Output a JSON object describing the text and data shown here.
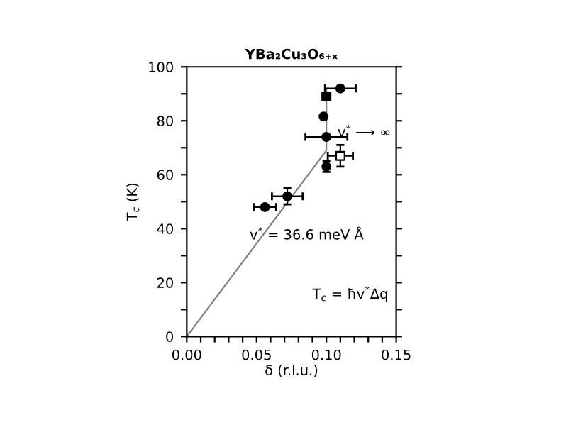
{
  "chart_data": {
    "type": "scatter",
    "title": "YBa₂Cu₃O₆₊ₓ",
    "xlabel": "δ (r.l.u.)",
    "ylabel": "T$_{c}$ (K)",
    "xlim": [
      0,
      0.15
    ],
    "ylim": [
      0,
      100
    ],
    "xticks": [
      {
        "value": 0,
        "label": "0.00"
      },
      {
        "value": 0.01,
        "label": null
      },
      {
        "value": 0.02,
        "label": null
      },
      {
        "value": 0.03,
        "label": null
      },
      {
        "value": 0.04,
        "label": null
      },
      {
        "value": 0.05,
        "label": "0.05"
      },
      {
        "value": 0.06,
        "label": null
      },
      {
        "value": 0.07,
        "label": null
      },
      {
        "value": 0.08,
        "label": null
      },
      {
        "value": 0.09,
        "label": null
      },
      {
        "value": 0.1,
        "label": "0.10"
      },
      {
        "value": 0.11,
        "label": null
      },
      {
        "value": 0.12,
        "label": null
      },
      {
        "value": 0.13,
        "label": null
      },
      {
        "value": 0.14,
        "label": null
      },
      {
        "value": 0.15,
        "label": "0.15"
      }
    ],
    "yticks": [
      0,
      {
        "value": 10,
        "label": null
      },
      20,
      {
        "value": 30,
        "label": null
      },
      40,
      {
        "value": 50,
        "label": null
      },
      60,
      {
        "value": 70,
        "label": null
      },
      80,
      {
        "value": 90,
        "label": null
      },
      100
    ],
    "grid": false,
    "legend": false,
    "series": [
      {
        "type": "line",
        "color": "#808080",
        "x": [
          0,
          0.1,
          0.1
        ],
        "values": [
          0,
          69,
          92
        ]
      },
      {
        "color": "#000000",
        "marker": "circle",
        "x": [
          0.11,
          0.098,
          0.1,
          0.1,
          0.072,
          0.056
        ],
        "values": [
          92,
          81.6,
          74,
          63,
          52,
          48
        ],
        "xerrors": [
          0.011,
          null,
          0.015,
          null,
          0.011,
          0.008
        ],
        "errors": [
          null,
          null,
          null,
          2,
          3,
          null
        ]
      },
      {
        "color": "#000000",
        "marker": "square",
        "x": [
          0.1
        ],
        "values": [
          89
        ]
      },
      {
        "color": "#ffffff",
        "marker": "square",
        "x": [
          0.11
        ],
        "values": [
          67
        ],
        "xerrors": [
          0.009
        ],
        "errors": [
          4
        ]
      }
    ],
    "annotations": [
      "v$^{*}$ = 36.6 meV Å",
      "T$_{c}$ = ħv$^{*}$Δq",
      "v$^{*}$ ⟶ ∞"
    ]
  }
}
